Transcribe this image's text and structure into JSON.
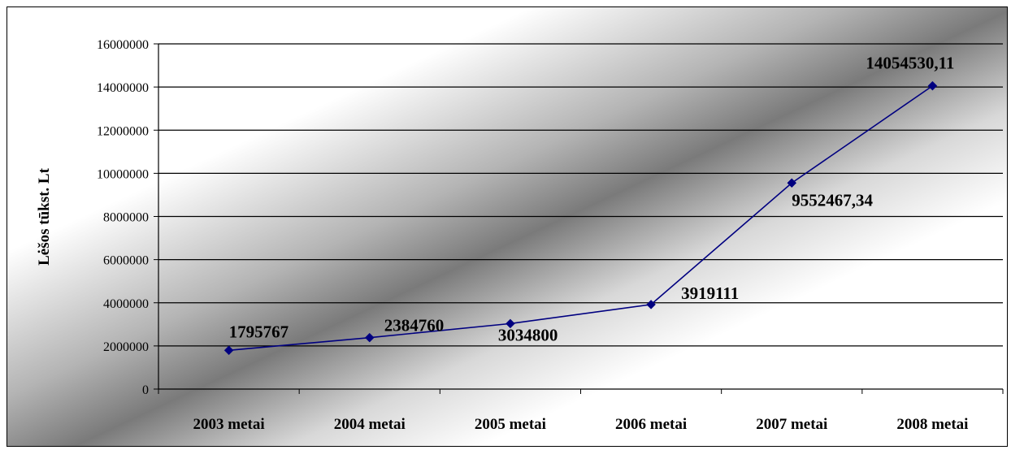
{
  "chart_data": {
    "type": "line",
    "categories": [
      "2003 metai",
      "2004 metai",
      "2005 metai",
      "2006 metai",
      "2007 metai",
      "2008 metai"
    ],
    "values": [
      1795767,
      2384760,
      3034800,
      3919111,
      9552467.34,
      14054530.11
    ],
    "data_labels": [
      "1795767",
      "2384760",
      "3034800",
      "3919111",
      "9552467,34",
      "14054530,11"
    ],
    "title": "",
    "xlabel": "",
    "ylabel": "Lėšos tūkst. Lt",
    "ylim": [
      0,
      16000000
    ],
    "yticks": [
      0,
      2000000,
      4000000,
      6000000,
      8000000,
      10000000,
      12000000,
      14000000,
      16000000
    ],
    "ytick_labels": [
      "0",
      "2000000",
      "4000000",
      "6000000",
      "8000000",
      "10000000",
      "12000000",
      "14000000",
      "16000000"
    ],
    "grid": true,
    "line_color": "#000080",
    "marker": "diamond"
  }
}
